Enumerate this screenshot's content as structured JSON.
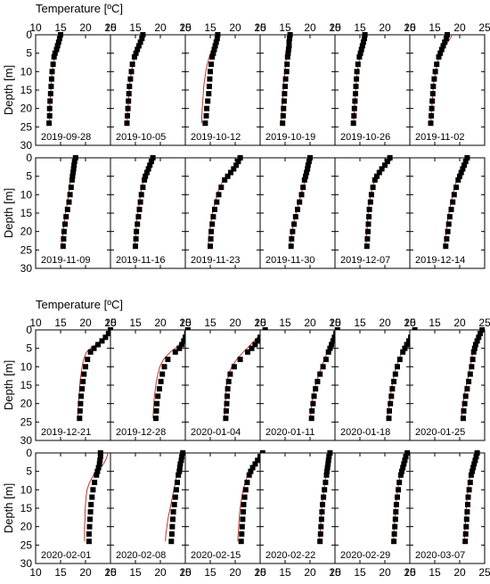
{
  "labels": {
    "xlabel": "Temperature [ºC]",
    "ylabel": "Depth [m]"
  },
  "colors": {
    "obs": "#000000",
    "model": "#c0392b",
    "frame": "#000000"
  },
  "chart_data": {
    "type": "scatter",
    "xlim": [
      10,
      25
    ],
    "ylim": [
      0,
      30
    ],
    "y_inverted": true,
    "x_ticks": [
      10,
      15,
      20,
      25
    ],
    "y_ticks": [
      0,
      5,
      10,
      15,
      20,
      25,
      30
    ],
    "depths": [
      0,
      1,
      2,
      3,
      4,
      5,
      6,
      8,
      10,
      12,
      14,
      16,
      18,
      20,
      22,
      24
    ],
    "series_names": {
      "obs": "",
      "model": ""
    },
    "groups": [
      {
        "panels": [
          {
            "date": "2019-09-28",
            "obs": [
              15.0,
              14.8,
              14.6,
              14.4,
              14.2,
              13.9,
              13.7,
              13.5,
              13.3,
              13.2,
              13.1,
              13.0,
              12.9,
              12.8,
              12.8,
              12.7
            ],
            "model": [
              15.2,
              15.0,
              14.7,
              14.5,
              14.2,
              14.0,
              13.8,
              13.5,
              13.3,
              13.2,
              13.1,
              13.0,
              12.9,
              12.8,
              12.8,
              12.7
            ]
          },
          {
            "date": "2019-10-05",
            "obs": [
              16.5,
              16.3,
              16.0,
              15.7,
              15.4,
              15.1,
              14.8,
              14.4,
              14.2,
              14.0,
              13.8,
              13.7,
              13.6,
              13.5,
              13.4,
              13.3
            ],
            "model": [
              16.8,
              16.5,
              16.1,
              15.8,
              15.5,
              15.2,
              14.9,
              14.5,
              14.2,
              14.0,
              13.8,
              13.7,
              13.6,
              13.5,
              13.4,
              13.3
            ]
          },
          {
            "date": "2019-10-12",
            "obs": [
              16.5,
              16.4,
              16.2,
              16.0,
              15.8,
              15.6,
              15.4,
              15.2,
              15.0,
              14.9,
              14.8,
              14.7,
              14.5,
              14.3,
              14.2,
              14.0
            ],
            "model": [
              16.4,
              16.2,
              16.0,
              15.7,
              15.4,
              15.1,
              14.8,
              14.4,
              14.1,
              13.9,
              13.7,
              13.6,
              13.5,
              13.4,
              13.3,
              13.3
            ]
          },
          {
            "date": "2019-10-19",
            "obs": [
              16.0,
              15.9,
              15.8,
              15.8,
              15.7,
              15.6,
              15.5,
              15.4,
              15.3,
              15.1,
              15.0,
              14.9,
              14.8,
              14.7,
              14.6,
              14.5
            ],
            "model": [
              16.0,
              15.9,
              15.8,
              15.7,
              15.6,
              15.5,
              15.3,
              15.1,
              15.0,
              14.8,
              14.7,
              14.6,
              14.5,
              14.4,
              14.3,
              14.2
            ]
          },
          {
            "date": "2019-10-26",
            "obs": [
              16.0,
              15.9,
              15.7,
              15.5,
              15.3,
              15.1,
              14.9,
              14.6,
              14.4,
              14.3,
              14.2,
              14.1,
              14.0,
              13.9,
              13.8,
              13.7
            ],
            "model": [
              16.2,
              16.0,
              15.8,
              15.6,
              15.4,
              15.2,
              15.0,
              14.7,
              14.5,
              14.3,
              14.2,
              14.1,
              14.0,
              13.9,
              13.8,
              13.7
            ]
          },
          {
            "date": "2019-11-02",
            "obs": [
              17.5,
              17.3,
              17.0,
              16.7,
              16.4,
              16.1,
              15.8,
              15.4,
              15.1,
              14.9,
              14.7,
              14.6,
              14.5,
              14.4,
              14.3,
              14.2
            ],
            "model": [
              18.5,
              18.1,
              17.6,
              17.1,
              16.7,
              16.3,
              15.9,
              15.5,
              15.2,
              14.9,
              14.7,
              14.6,
              14.5,
              14.4,
              14.3,
              14.2
            ]
          }
        ]
      },
      {
        "panels": [
          {
            "date": "2019-11-09",
            "obs": [
              18.0,
              17.8,
              17.7,
              17.6,
              17.5,
              17.4,
              17.3,
              17.1,
              16.9,
              16.7,
              16.4,
              16.1,
              15.9,
              15.7,
              15.6,
              15.5
            ],
            "model": [
              17.6,
              17.5,
              17.4,
              17.3,
              17.2,
              17.1,
              17.0,
              16.8,
              16.6,
              16.4,
              16.1,
              15.9,
              15.7,
              15.5,
              15.4,
              15.3
            ]
          },
          {
            "date": "2019-11-16",
            "obs": [
              18.5,
              18.2,
              17.9,
              17.6,
              17.3,
              17.0,
              16.8,
              16.5,
              16.2,
              16.0,
              15.8,
              15.6,
              15.4,
              15.2,
              15.1,
              15.0
            ],
            "model": [
              18.3,
              18.0,
              17.7,
              17.4,
              17.1,
              16.8,
              16.6,
              16.3,
              16.0,
              15.8,
              15.6,
              15.4,
              15.2,
              15.1,
              15.0,
              14.9
            ]
          },
          {
            "date": "2019-11-23",
            "obs": [
              21.0,
              20.6,
              20.2,
              19.7,
              19.1,
              18.5,
              17.9,
              17.2,
              16.7,
              16.3,
              15.9,
              15.6,
              15.4,
              15.2,
              15.1,
              15.0
            ],
            "model": [
              21.5,
              21.0,
              20.3,
              19.6,
              18.9,
              18.2,
              17.6,
              16.9,
              16.4,
              16.0,
              15.6,
              15.3,
              15.1,
              14.9,
              14.7,
              14.6
            ]
          },
          {
            "date": "2019-11-30",
            "obs": [
              20.0,
              19.8,
              19.6,
              19.5,
              19.3,
              19.1,
              18.9,
              18.6,
              18.3,
              17.9,
              17.5,
              17.1,
              16.8,
              16.5,
              16.3,
              16.2
            ],
            "model": [
              20.2,
              20.0,
              19.8,
              19.6,
              19.4,
              19.2,
              19.0,
              18.6,
              18.2,
              17.8,
              17.4,
              17.0,
              16.7,
              16.4,
              16.2,
              16.0
            ]
          },
          {
            "date": "2019-12-07",
            "obs": [
              21.0,
              20.5,
              20.0,
              19.4,
              18.9,
              18.4,
              18.0,
              17.6,
              17.3,
              17.1,
              16.9,
              16.8,
              16.7,
              16.6,
              16.5,
              16.4
            ],
            "model": [
              21.6,
              21.0,
              20.3,
              19.6,
              19.0,
              18.5,
              18.0,
              17.5,
              17.2,
              16.9,
              16.7,
              16.6,
              16.5,
              16.4,
              16.3,
              16.2
            ]
          },
          {
            "date": "2019-12-14",
            "obs": [
              21.5,
              21.2,
              20.9,
              20.6,
              20.3,
              20.0,
              19.7,
              19.3,
              18.9,
              18.6,
              18.3,
              18.0,
              17.8,
              17.6,
              17.4,
              17.2
            ],
            "model": [
              21.8,
              21.4,
              21.0,
              20.6,
              20.2,
              19.8,
              19.4,
              19.0,
              18.6,
              18.3,
              18.0,
              17.7,
              17.5,
              17.3,
              17.1,
              17.0
            ]
          }
        ]
      }
    ],
    "groups_2": [
      {
        "panels": [
          {
            "date": "2019-12-21",
            "obs": [
              25.0,
              24.6,
              24.0,
              23.3,
              22.5,
              21.7,
              21.0,
              20.4,
              20.0,
              19.7,
              19.5,
              19.3,
              19.1,
              19.0,
              18.9,
              18.8
            ],
            "model": [
              25.4,
              24.8,
              24.0,
              23.0,
              22.0,
              21.0,
              20.2,
              19.6,
              19.3,
              19.1,
              18.9,
              18.8,
              18.7,
              18.6,
              18.5,
              18.5
            ]
          },
          {
            "date": "2019-12-28",
            "obs": [
              25.5,
              25.3,
              25.0,
              24.7,
              24.3,
              23.8,
              23.0,
              21.5,
              20.8,
              20.4,
              20.1,
              19.8,
              19.5,
              19.3,
              19.2,
              19.1
            ],
            "model": [
              25.6,
              25.3,
              24.9,
              24.4,
              23.8,
              23.0,
              22.0,
              20.6,
              19.9,
              19.5,
              19.2,
              19.0,
              18.8,
              18.7,
              18.6,
              18.5
            ]
          },
          {
            "date": "2020-01-04",
            "obs": [
              26.0,
              25.5,
              25.0,
              24.5,
              24.0,
              23.3,
              22.5,
              21.0,
              19.8,
              19.0,
              18.7,
              18.5,
              18.4,
              18.3,
              18.2,
              18.1
            ],
            "model": [
              25.8,
              25.2,
              24.5,
              23.8,
              23.1,
              22.4,
              21.6,
              20.3,
              19.3,
              18.7,
              18.4,
              18.2,
              18.1,
              18.0,
              17.9,
              17.9
            ]
          },
          {
            "date": "2020-01-11",
            "obs": [
              25.5,
              25.2,
              24.9,
              24.6,
              24.3,
              24.0,
              23.7,
              23.2,
              22.6,
              22.0,
              21.5,
              21.1,
              20.8,
              20.6,
              20.4,
              20.3
            ],
            "model": [
              25.0,
              24.8,
              24.6,
              24.4,
              24.1,
              23.8,
              23.5,
              22.9,
              22.3,
              21.8,
              21.3,
              20.9,
              20.6,
              20.4,
              20.2,
              20.1
            ]
          },
          {
            "date": "2020-01-18",
            "obs": [
              26.0,
              25.6,
              25.2,
              24.8,
              24.4,
              24.0,
              23.6,
              23.0,
              22.5,
              22.1,
              21.8,
              21.5,
              21.3,
              21.1,
              20.9,
              20.8
            ],
            "model": [
              25.6,
              25.3,
              25.0,
              24.6,
              24.2,
              23.8,
              23.4,
              22.8,
              22.3,
              21.9,
              21.6,
              21.3,
              21.1,
              20.9,
              20.7,
              20.6
            ]
          },
          {
            "date": "2020-01-25",
            "obs": [
              24.5,
              24.1,
              23.8,
              23.5,
              23.2,
              23.0,
              22.8,
              22.6,
              22.4,
              22.1,
              21.8,
              21.5,
              21.2,
              21.0,
              20.8,
              20.7
            ],
            "model": [
              24.2,
              23.9,
              23.6,
              23.3,
              23.0,
              22.8,
              22.6,
              22.4,
              22.1,
              21.8,
              21.5,
              21.2,
              20.9,
              20.7,
              20.5,
              20.4
            ]
          }
        ]
      },
      {
        "panels": [
          {
            "date": "2020-02-01",
            "obs": [
              23.0,
              23.0,
              22.9,
              22.8,
              22.6,
              22.4,
              22.2,
              21.8,
              21.5,
              21.3,
              21.1,
              21.0,
              20.9,
              20.8,
              20.7,
              20.7
            ],
            "model": [
              24.5,
              24.3,
              24.0,
              23.6,
              23.0,
              22.3,
              21.6,
              20.8,
              20.3,
              20.1,
              20.0,
              19.9,
              19.9,
              19.8,
              19.8,
              19.8
            ]
          },
          {
            "date": "2020-02-08",
            "obs": [
              24.5,
              24.3,
              24.2,
              24.0,
              23.9,
              23.8,
              23.6,
              23.4,
              23.2,
              23.0,
              22.8,
              22.6,
              22.5,
              22.4,
              22.3,
              22.2
            ],
            "model": [
              24.3,
              24.1,
              24.0,
              23.8,
              23.7,
              23.5,
              23.3,
              23.0,
              22.7,
              22.4,
              22.1,
              21.8,
              21.5,
              21.3,
              21.1,
              21.0
            ]
          },
          {
            "date": "2020-02-15",
            "obs": [
              25.5,
              25.0,
              24.5,
              24.0,
              23.5,
              23.1,
              22.8,
              22.4,
              22.1,
              21.9,
              21.7,
              21.6,
              21.5,
              21.4,
              21.3,
              21.2
            ],
            "model": [
              25.8,
              25.2,
              24.6,
              24.0,
              23.4,
              22.9,
              22.5,
              22.0,
              21.6,
              21.3,
              21.1,
              20.9,
              20.8,
              20.7,
              20.6,
              20.5
            ]
          },
          {
            "date": "2020-02-22",
            "obs": [
              24.0,
              23.8,
              23.7,
              23.6,
              23.5,
              23.4,
              23.3,
              23.1,
              22.9,
              22.7,
              22.5,
              22.4,
              22.3,
              22.2,
              22.1,
              22.0
            ],
            "model": [
              23.8,
              23.7,
              23.6,
              23.5,
              23.4,
              23.3,
              23.2,
              23.0,
              22.8,
              22.6,
              22.4,
              22.3,
              22.2,
              22.1,
              22.0,
              21.9
            ]
          },
          {
            "date": "2020-02-29",
            "obs": [
              24.5,
              24.2,
              24.0,
              23.8,
              23.6,
              23.4,
              23.2,
              22.9,
              22.7,
              22.5,
              22.3,
              22.2,
              22.1,
              22.0,
              21.9,
              21.8
            ],
            "model": [
              24.3,
              24.1,
              23.9,
              23.7,
              23.5,
              23.3,
              23.1,
              22.8,
              22.6,
              22.4,
              22.2,
              22.1,
              22.0,
              21.9,
              21.8,
              21.7
            ]
          },
          {
            "date": "2020-03-07",
            "obs": [
              23.5,
              23.3,
              23.1,
              22.9,
              22.7,
              22.5,
              22.3,
              22.1,
              21.9,
              21.7,
              21.6,
              21.5,
              21.4,
              21.3,
              21.2,
              21.1
            ],
            "model": [
              23.3,
              23.1,
              22.9,
              22.7,
              22.5,
              22.3,
              22.1,
              21.9,
              21.7,
              21.5,
              21.4,
              21.3,
              21.2,
              21.1,
              21.0,
              20.9
            ]
          }
        ]
      }
    ]
  }
}
